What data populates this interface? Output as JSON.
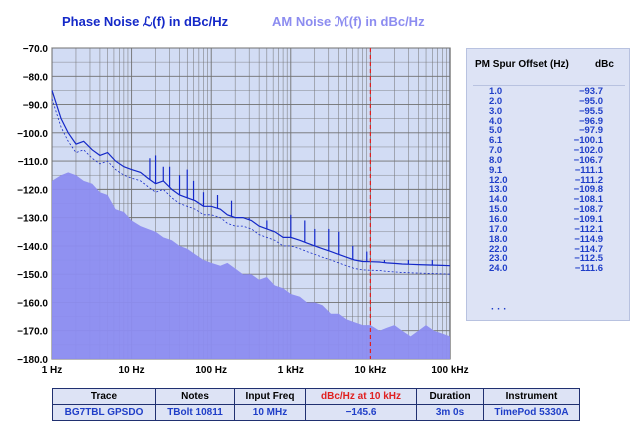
{
  "header": {
    "pn_title": "Phase  Noise ℒ(f) in dBc/Hz",
    "am_title": "AM  Noise ℳ(f) in dBc/Hz"
  },
  "colors": {
    "phase": "#1428c8",
    "am": "#8c8cf0",
    "am_fill": "#8c8cf0",
    "plot_bg": "#d2dcf4",
    "grid": "#707070",
    "marker": "#e02020"
  },
  "chart_data": {
    "type": "line",
    "xscale": "log",
    "xlim": [
      1,
      100000
    ],
    "ylim": [
      -180,
      -70
    ],
    "x_ticks": [
      "1 Hz",
      "10 Hz",
      "100 Hz",
      "1 kHz",
      "10 kHz",
      "100 kHz"
    ],
    "y_ticks": [
      "−70.0",
      "−80.0",
      "−90.0",
      "−100.0",
      "−110.0",
      "−120.0",
      "−130.0",
      "−140.0",
      "−150.0",
      "−160.0",
      "−170.0",
      "−180.0"
    ],
    "marker_x": 10000,
    "grid": true,
    "series": [
      {
        "name": "Phase Noise",
        "x": [
          1,
          1.3,
          1.6,
          2,
          2.5,
          3.2,
          4,
          5,
          6.3,
          8,
          10,
          13,
          16,
          20,
          25,
          32,
          40,
          50,
          63,
          80,
          100,
          130,
          160,
          200,
          250,
          320,
          400,
          500,
          630,
          800,
          1000,
          1300,
          1600,
          2000,
          2500,
          3200,
          4000,
          5000,
          6300,
          8000,
          10000,
          13000,
          16000,
          20000,
          25000,
          32000,
          40000,
          50000,
          63000,
          80000,
          100000
        ],
        "values": [
          -85,
          -95,
          -100,
          -104,
          -103,
          -106,
          -108,
          -107,
          -110,
          -112,
          -113,
          -114,
          -116,
          -118,
          -117,
          -120,
          -122,
          -123,
          -124,
          -126,
          -126,
          -127,
          -129,
          -130,
          -130,
          -131,
          -133,
          -134,
          -135,
          -137,
          -137,
          -138,
          -139,
          -140,
          -141,
          -142,
          -143,
          -144,
          -145,
          -145.5,
          -145.6,
          -145.7,
          -146,
          -146.2,
          -146.4,
          -146.5,
          -146.6,
          -146.7,
          -146.8,
          -146.9,
          -147
        ]
      },
      {
        "name": "AM Noise",
        "x": [
          1,
          1.3,
          1.6,
          2,
          2.5,
          3.2,
          4,
          5,
          6.3,
          8,
          10,
          13,
          16,
          20,
          25,
          32,
          40,
          50,
          63,
          80,
          100,
          130,
          160,
          200,
          250,
          320,
          400,
          500,
          630,
          800,
          1000,
          1300,
          1600,
          2000,
          2500,
          3200,
          4000,
          5000,
          6300,
          8000,
          10000,
          13000,
          16000,
          20000,
          25000,
          32000,
          40000,
          50000,
          63000,
          80000,
          100000
        ],
        "values": [
          -117,
          -115,
          -114,
          -115,
          -117,
          -118,
          -121,
          -122,
          -127,
          -128,
          -131,
          -133,
          -134,
          -135,
          -137,
          -138,
          -140,
          -141,
          -143,
          -145,
          -146,
          -147,
          -146,
          -148,
          -150,
          -150,
          -152,
          -151,
          -154,
          -155,
          -157,
          -158,
          -160,
          -160,
          -161,
          -164,
          -164,
          -166,
          -167,
          -168,
          -168,
          -170,
          -169,
          -168,
          -170,
          -172,
          -170,
          -168,
          -170,
          -171,
          -172
        ]
      }
    ],
    "spikes": [
      {
        "x": 17,
        "top": -109
      },
      {
        "x": 20,
        "top": -108
      },
      {
        "x": 25,
        "top": -112
      },
      {
        "x": 30,
        "top": -112
      },
      {
        "x": 40,
        "top": -115
      },
      {
        "x": 50,
        "top": -113
      },
      {
        "x": 60,
        "top": -117
      },
      {
        "x": 80,
        "top": -121
      },
      {
        "x": 120,
        "top": -122
      },
      {
        "x": 180,
        "top": -124
      },
      {
        "x": 300,
        "top": -130
      },
      {
        "x": 500,
        "top": -131
      },
      {
        "x": 1000,
        "top": -129
      },
      {
        "x": 1500,
        "top": -131
      },
      {
        "x": 2000,
        "top": -134
      },
      {
        "x": 3000,
        "top": -134
      },
      {
        "x": 4000,
        "top": -135
      },
      {
        "x": 6000,
        "top": -140
      },
      {
        "x": 9000,
        "top": -142
      },
      {
        "x": 15000,
        "top": -145
      },
      {
        "x": 30000,
        "top": -145
      },
      {
        "x": 60000,
        "top": -145
      }
    ]
  },
  "spur_table": {
    "header_offset": "PM Spur Offset (Hz)",
    "header_dbc": "dBc",
    "rows": [
      {
        "offset": "1.0",
        "dbc": "−93.7"
      },
      {
        "offset": "2.0",
        "dbc": "−95.0"
      },
      {
        "offset": "3.0",
        "dbc": "−95.5"
      },
      {
        "offset": "4.0",
        "dbc": "−96.9"
      },
      {
        "offset": "5.0",
        "dbc": "−97.9"
      },
      {
        "offset": "6.1",
        "dbc": "−100.1"
      },
      {
        "offset": "7.0",
        "dbc": "−102.0"
      },
      {
        "offset": "8.0",
        "dbc": "−106.7"
      },
      {
        "offset": "9.1",
        "dbc": "−111.1"
      },
      {
        "offset": "12.0",
        "dbc": "−111.2"
      },
      {
        "offset": "13.0",
        "dbc": "−109.8"
      },
      {
        "offset": "14.0",
        "dbc": "−108.1"
      },
      {
        "offset": "15.0",
        "dbc": "−108.7"
      },
      {
        "offset": "16.0",
        "dbc": "−109.1"
      },
      {
        "offset": "17.0",
        "dbc": "−112.1"
      },
      {
        "offset": "18.0",
        "dbc": "−114.9"
      },
      {
        "offset": "22.0",
        "dbc": "−114.7"
      },
      {
        "offset": "23.0",
        "dbc": "−112.5"
      },
      {
        "offset": "24.0",
        "dbc": "−111.6"
      }
    ],
    "ellipsis": "· · ·"
  },
  "meta_table": {
    "headers": {
      "trace": "Trace",
      "notes": "Notes",
      "input_freq": "Input Freq",
      "dbc_at": "dBc/Hz at 10 kHz",
      "duration": "Duration",
      "instrument": "Instrument"
    },
    "row": {
      "trace": "BG7TBL GPSDO",
      "notes": "TBolt 10811",
      "input_freq": "10 MHz",
      "dbc_at": "−145.6",
      "duration": "3m 0s",
      "instrument": "TimePod 5330A"
    }
  }
}
